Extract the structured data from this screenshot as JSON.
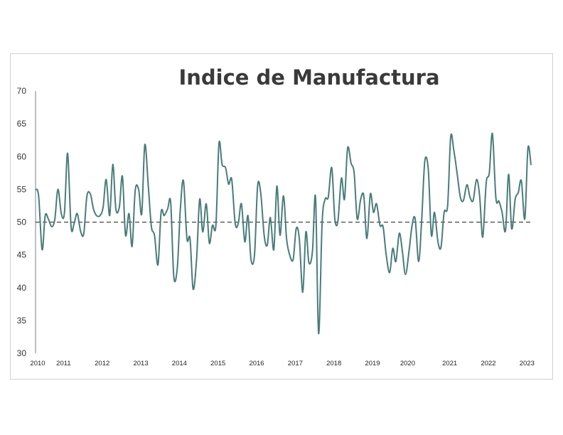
{
  "chart_data": {
    "type": "line",
    "title": "Indice de Manufactura",
    "xlabel": "",
    "ylabel": "",
    "ylim": [
      30,
      70
    ],
    "y_ticks": [
      "30",
      "35",
      "40",
      "45",
      "50",
      "55",
      "60",
      "65",
      "70"
    ],
    "x_ticks": [
      {
        "label": "2010",
        "x": 2010.0
      },
      {
        "label": "2011",
        "x": 2010.67
      },
      {
        "label": "2012",
        "x": 2011.67
      },
      {
        "label": "2013",
        "x": 2012.67
      },
      {
        "label": "2014",
        "x": 2013.67
      },
      {
        "label": "2015",
        "x": 2014.67
      },
      {
        "label": "2016",
        "x": 2015.67
      },
      {
        "label": "2017",
        "x": 2016.67
      },
      {
        "label": "2018",
        "x": 2017.67
      },
      {
        "label": "2019",
        "x": 2018.67
      },
      {
        "label": "2020",
        "x": 2019.58
      },
      {
        "label": "2021",
        "x": 2020.67
      },
      {
        "label": "2022",
        "x": 2021.67
      },
      {
        "label": "2023",
        "x": 2022.67
      }
    ],
    "xlim": [
      2010.0,
      2022.83
    ],
    "reference_line": {
      "y": 50,
      "style": "dashed",
      "color": "#222222"
    },
    "grid": false,
    "series": [
      {
        "color": "#4a7c79",
        "points": [
          [
            2010.0,
            55.0
          ],
          [
            2010.08,
            54.0
          ],
          [
            2010.17,
            45.8
          ],
          [
            2010.25,
            51.0
          ],
          [
            2010.33,
            50.5
          ],
          [
            2010.42,
            49.3
          ],
          [
            2010.5,
            50.5
          ],
          [
            2010.58,
            55.0
          ],
          [
            2010.67,
            51.2
          ],
          [
            2010.75,
            51.5
          ],
          [
            2010.83,
            60.5
          ],
          [
            2010.92,
            49.3
          ],
          [
            2011.0,
            49.8
          ],
          [
            2011.08,
            51.3
          ],
          [
            2011.17,
            48.5
          ],
          [
            2011.25,
            48.3
          ],
          [
            2011.33,
            54.0
          ],
          [
            2011.42,
            54.3
          ],
          [
            2011.5,
            52.0
          ],
          [
            2011.58,
            51.0
          ],
          [
            2011.67,
            51.0
          ],
          [
            2011.75,
            52.3
          ],
          [
            2011.83,
            56.5
          ],
          [
            2011.92,
            51.0
          ],
          [
            2012.0,
            58.8
          ],
          [
            2012.08,
            52.0
          ],
          [
            2012.17,
            52.3
          ],
          [
            2012.25,
            57.0
          ],
          [
            2012.33,
            48.0
          ],
          [
            2012.42,
            51.3
          ],
          [
            2012.5,
            46.3
          ],
          [
            2012.58,
            54.8
          ],
          [
            2012.67,
            55.0
          ],
          [
            2012.75,
            51.3
          ],
          [
            2012.83,
            61.8
          ],
          [
            2012.92,
            55.5
          ],
          [
            2013.0,
            49.3
          ],
          [
            2013.08,
            48.0
          ],
          [
            2013.17,
            43.5
          ],
          [
            2013.25,
            51.5
          ],
          [
            2013.33,
            51.0
          ],
          [
            2013.42,
            52.0
          ],
          [
            2013.5,
            53.0
          ],
          [
            2013.58,
            41.7
          ],
          [
            2013.67,
            43.0
          ],
          [
            2013.75,
            52.0
          ],
          [
            2013.83,
            56.3
          ],
          [
            2013.92,
            47.5
          ],
          [
            2014.0,
            47.5
          ],
          [
            2014.08,
            39.8
          ],
          [
            2014.17,
            44.3
          ],
          [
            2014.25,
            53.5
          ],
          [
            2014.33,
            48.5
          ],
          [
            2014.42,
            52.8
          ],
          [
            2014.5,
            46.8
          ],
          [
            2014.58,
            49.5
          ],
          [
            2014.67,
            49.5
          ],
          [
            2014.75,
            62.0
          ],
          [
            2014.83,
            58.8
          ],
          [
            2014.92,
            58.3
          ],
          [
            2015.0,
            55.8
          ],
          [
            2015.08,
            56.5
          ],
          [
            2015.17,
            49.8
          ],
          [
            2015.25,
            49.8
          ],
          [
            2015.33,
            52.8
          ],
          [
            2015.42,
            47.0
          ],
          [
            2015.5,
            51.0
          ],
          [
            2015.58,
            44.3
          ],
          [
            2015.67,
            45.0
          ],
          [
            2015.75,
            55.5
          ],
          [
            2015.83,
            54.5
          ],
          [
            2015.92,
            48.0
          ],
          [
            2016.0,
            46.5
          ],
          [
            2016.08,
            50.7
          ],
          [
            2016.17,
            45.8
          ],
          [
            2016.25,
            55.5
          ],
          [
            2016.33,
            48.0
          ],
          [
            2016.42,
            54.0
          ],
          [
            2016.5,
            47.5
          ],
          [
            2016.58,
            45.0
          ],
          [
            2016.67,
            44.3
          ],
          [
            2016.75,
            49.0
          ],
          [
            2016.83,
            47.5
          ],
          [
            2016.92,
            39.3
          ],
          [
            2017.0,
            48.5
          ],
          [
            2017.08,
            43.8
          ],
          [
            2017.17,
            45.5
          ],
          [
            2017.25,
            53.8
          ],
          [
            2017.33,
            33.0
          ],
          [
            2017.42,
            49.8
          ],
          [
            2017.5,
            53.5
          ],
          [
            2017.58,
            53.8
          ],
          [
            2017.67,
            58.3
          ],
          [
            2017.75,
            50.5
          ],
          [
            2017.83,
            50.2
          ],
          [
            2017.92,
            56.7
          ],
          [
            2018.0,
            53.5
          ],
          [
            2018.08,
            61.3
          ],
          [
            2018.17,
            59.0
          ],
          [
            2018.25,
            57.5
          ],
          [
            2018.33,
            50.5
          ],
          [
            2018.42,
            53.5
          ],
          [
            2018.5,
            54.0
          ],
          [
            2018.58,
            47.5
          ],
          [
            2018.67,
            54.3
          ],
          [
            2018.75,
            51.5
          ],
          [
            2018.83,
            52.8
          ],
          [
            2018.92,
            49.5
          ],
          [
            2019.0,
            49.3
          ],
          [
            2019.08,
            45.0
          ],
          [
            2019.17,
            42.3
          ],
          [
            2019.25,
            46.0
          ],
          [
            2019.33,
            44.0
          ],
          [
            2019.42,
            48.3
          ],
          [
            2019.5,
            45.5
          ],
          [
            2019.58,
            42.0
          ],
          [
            2019.67,
            45.5
          ],
          [
            2019.75,
            49.5
          ],
          [
            2019.83,
            50.5
          ],
          [
            2019.92,
            44.0
          ],
          [
            2020.0,
            50.5
          ],
          [
            2020.08,
            59.3
          ],
          [
            2020.17,
            58.0
          ],
          [
            2020.25,
            48.0
          ],
          [
            2020.33,
            51.5
          ],
          [
            2020.42,
            47.0
          ],
          [
            2020.5,
            46.2
          ],
          [
            2020.58,
            51.5
          ],
          [
            2020.67,
            52.5
          ],
          [
            2020.75,
            63.0
          ],
          [
            2020.83,
            61.0
          ],
          [
            2020.92,
            57.3
          ],
          [
            2021.0,
            53.8
          ],
          [
            2021.08,
            53.3
          ],
          [
            2021.17,
            55.7
          ],
          [
            2021.25,
            53.8
          ],
          [
            2021.33,
            53.3
          ],
          [
            2021.42,
            56.5
          ],
          [
            2021.5,
            54.0
          ],
          [
            2021.58,
            47.7
          ],
          [
            2021.67,
            56.0
          ],
          [
            2021.75,
            57.5
          ],
          [
            2021.83,
            63.5
          ],
          [
            2021.92,
            53.7
          ],
          [
            2022.0,
            53.2
          ],
          [
            2022.08,
            51.5
          ],
          [
            2022.17,
            48.7
          ],
          [
            2022.25,
            57.3
          ],
          [
            2022.33,
            49.0
          ],
          [
            2022.42,
            53.5
          ],
          [
            2022.5,
            54.5
          ],
          [
            2022.58,
            56.3
          ],
          [
            2022.67,
            50.5
          ],
          [
            2022.75,
            61.3
          ],
          [
            2022.83,
            58.7
          ]
        ]
      }
    ]
  }
}
